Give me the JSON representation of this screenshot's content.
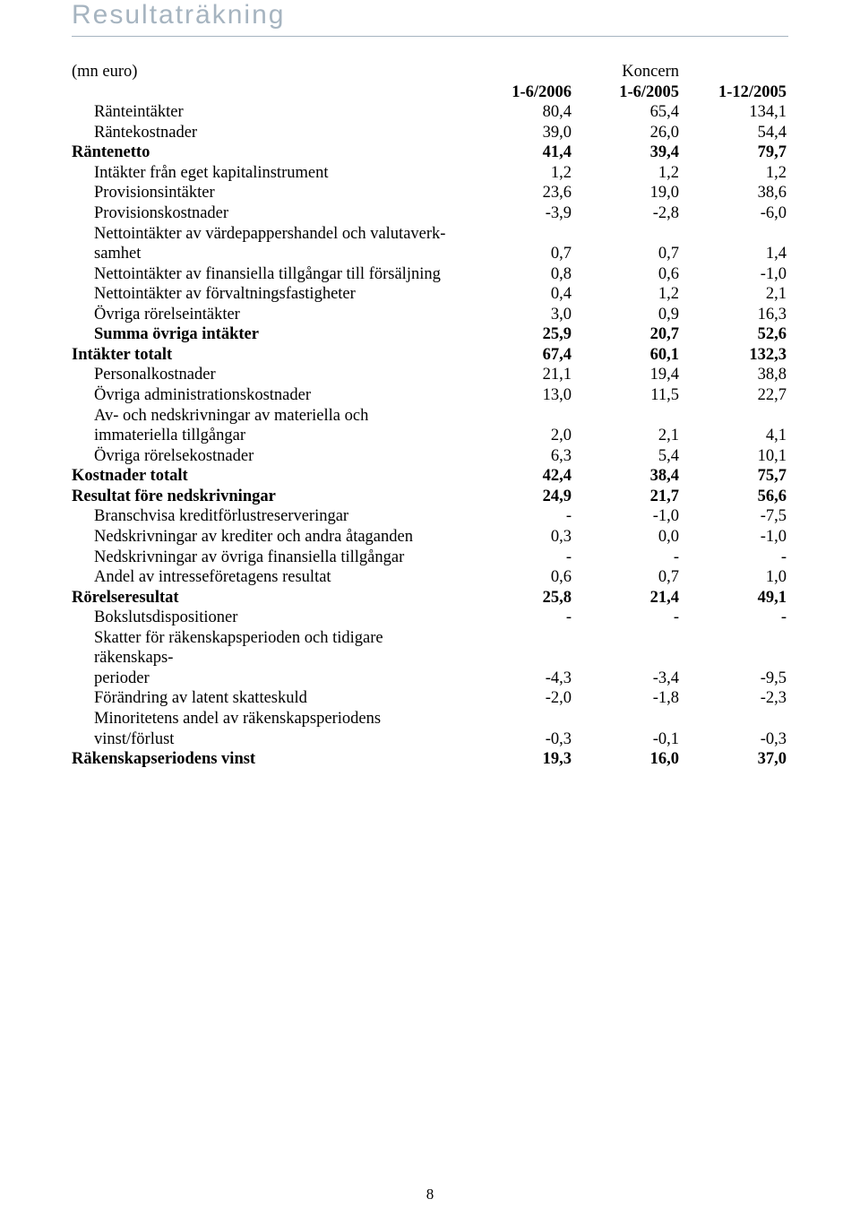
{
  "title": "Resultaträkning",
  "unit_label": "(mn euro)",
  "group_label": "Koncern",
  "columns": [
    "1-6/2006",
    "1-6/2005",
    "1-12/2005"
  ],
  "page_number": "8",
  "colors": {
    "title_color": "#a6b4c0",
    "rule_color": "#a6b4c0",
    "text_color": "#000000",
    "background": "#ffffff"
  },
  "fonts": {
    "title_family": "Arial",
    "title_size_pt": 22,
    "body_family": "Times New Roman",
    "body_size_pt": 14
  },
  "rows": [
    {
      "label": "Ränteintäkter",
      "indent": 1,
      "bold": false,
      "values": [
        "80,4",
        "65,4",
        "134,1"
      ]
    },
    {
      "label": "Räntekostnader",
      "indent": 1,
      "bold": false,
      "values": [
        "39,0",
        "26,0",
        "54,4"
      ]
    },
    {
      "label": "Räntenetto",
      "indent": 0,
      "bold": true,
      "values": [
        "41,4",
        "39,4",
        "79,7"
      ]
    },
    {
      "label": "Intäkter från eget kapitalinstrument",
      "indent": 1,
      "bold": false,
      "values": [
        "1,2",
        "1,2",
        "1,2"
      ]
    },
    {
      "label": "Provisionsintäkter",
      "indent": 1,
      "bold": false,
      "values": [
        "23,6",
        "19,0",
        "38,6"
      ]
    },
    {
      "label": "Provisionskostnader",
      "indent": 1,
      "bold": false,
      "values": [
        "-3,9",
        "-2,8",
        "-6,0"
      ]
    },
    {
      "label": "Nettointäkter av värdepappershandel och valutaverk-",
      "indent": 1,
      "bold": false,
      "values": [
        "",
        "",
        ""
      ]
    },
    {
      "label": "samhet",
      "indent": 1,
      "bold": false,
      "values": [
        "0,7",
        "0,7",
        "1,4"
      ]
    },
    {
      "label": "Nettointäkter av finansiella tillgångar till försäljning",
      "indent": 1,
      "bold": false,
      "values": [
        "0,8",
        "0,6",
        "-1,0"
      ]
    },
    {
      "label": "Nettointäkter av förvaltningsfastigheter",
      "indent": 1,
      "bold": false,
      "values": [
        "0,4",
        "1,2",
        "2,1"
      ]
    },
    {
      "label": "Övriga rörelseintäkter",
      "indent": 1,
      "bold": false,
      "values": [
        "3,0",
        "0,9",
        "16,3"
      ]
    },
    {
      "label": "Summa övriga intäkter",
      "indent": 1,
      "bold": true,
      "bold_label_only": true,
      "values": [
        "25,9",
        "20,7",
        "52,6"
      ]
    },
    {
      "label": "Intäkter totalt",
      "indent": 0,
      "bold": true,
      "values": [
        "67,4",
        "60,1",
        "132,3"
      ]
    },
    {
      "label": "Personalkostnader",
      "indent": 1,
      "bold": false,
      "values": [
        "21,1",
        "19,4",
        "38,8"
      ]
    },
    {
      "label": "Övriga administrationskostnader",
      "indent": 1,
      "bold": false,
      "values": [
        "13,0",
        "11,5",
        "22,7"
      ]
    },
    {
      "label": "Av- och nedskrivningar av materiella och",
      "indent": 1,
      "bold": false,
      "values": [
        "",
        "",
        ""
      ]
    },
    {
      "label": "immateriella tillgångar",
      "indent": 1,
      "bold": false,
      "values": [
        "2,0",
        "2,1",
        "4,1"
      ]
    },
    {
      "label": "Övriga rörelsekostnader",
      "indent": 1,
      "bold": false,
      "values": [
        "6,3",
        "5,4",
        "10,1"
      ]
    },
    {
      "label": "Kostnader totalt",
      "indent": 0,
      "bold": true,
      "values": [
        "42,4",
        "38,4",
        "75,7"
      ]
    },
    {
      "label": "Resultat före nedskrivningar",
      "indent": 0,
      "bold": true,
      "values": [
        "24,9",
        "21,7",
        "56,6"
      ]
    },
    {
      "label": "Branschvisa kreditförlustreserveringar",
      "indent": 1,
      "bold": false,
      "values": [
        "-",
        "-1,0",
        "-7,5"
      ]
    },
    {
      "label": "Nedskrivningar av krediter och andra åtaganden",
      "indent": 1,
      "bold": false,
      "values": [
        "0,3",
        "0,0",
        "-1,0"
      ]
    },
    {
      "label": "Nedskrivningar av övriga finansiella tillgångar",
      "indent": 1,
      "bold": false,
      "values": [
        "-",
        "-",
        "-"
      ]
    },
    {
      "label": "Andel av intresseföretagens resultat",
      "indent": 1,
      "bold": false,
      "values": [
        "0,6",
        "0,7",
        "1,0"
      ]
    },
    {
      "label": "Rörelseresultat",
      "indent": 0,
      "bold": true,
      "values": [
        "25,8",
        "21,4",
        "49,1"
      ]
    },
    {
      "label": "Bokslutsdispositioner",
      "indent": 1,
      "bold": false,
      "values": [
        "-",
        "-",
        "-"
      ]
    },
    {
      "label": "Skatter för räkenskapsperioden och tidigare räkenskaps-",
      "indent": 1,
      "bold": false,
      "values": [
        "",
        "",
        ""
      ]
    },
    {
      "label": "perioder",
      "indent": 1,
      "bold": false,
      "values": [
        "-4,3",
        "-3,4",
        "-9,5"
      ]
    },
    {
      "label": "Förändring av latent skatteskuld",
      "indent": 1,
      "bold": false,
      "values": [
        "-2,0",
        "-1,8",
        "-2,3"
      ]
    },
    {
      "label": "Minoritetens andel av räkenskapsperiodens vinst/förlust",
      "indent": 1,
      "bold": false,
      "values": [
        "-0,3",
        "-0,1",
        "-0,3"
      ]
    },
    {
      "label": "Räkenskapseriodens vinst",
      "indent": 0,
      "bold": true,
      "values": [
        "19,3",
        "16,0",
        "37,0"
      ]
    }
  ]
}
